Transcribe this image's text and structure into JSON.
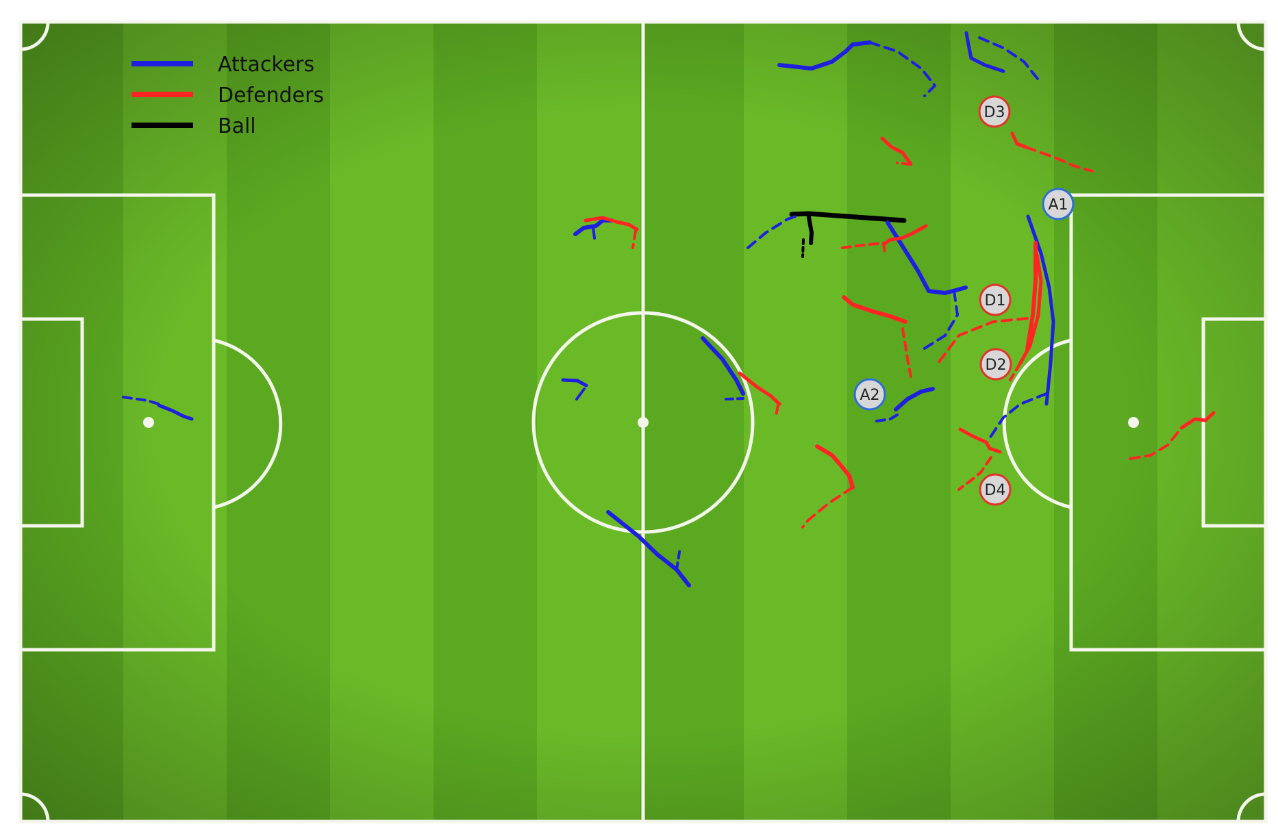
{
  "colors": {
    "attackers": "#1f1fe0",
    "defenders": "#ff2424",
    "ball": "#000000",
    "pitch_light": "#6aba28",
    "pitch_dark": "#4f9a1c",
    "lines": "#f4f6ec",
    "attacker_marker_border": "#2f6fd6",
    "defender_marker_border": "#e0342c",
    "marker_fill": "#d7d7d7"
  },
  "legend": {
    "attackers_label": "Attackers",
    "defenders_label": "Defenders",
    "ball_label": "Ball"
  },
  "markers": {
    "a1": "A1",
    "a2": "A2",
    "d1": "D1",
    "d2": "D2",
    "d3": "D3",
    "d4": "D4"
  }
}
